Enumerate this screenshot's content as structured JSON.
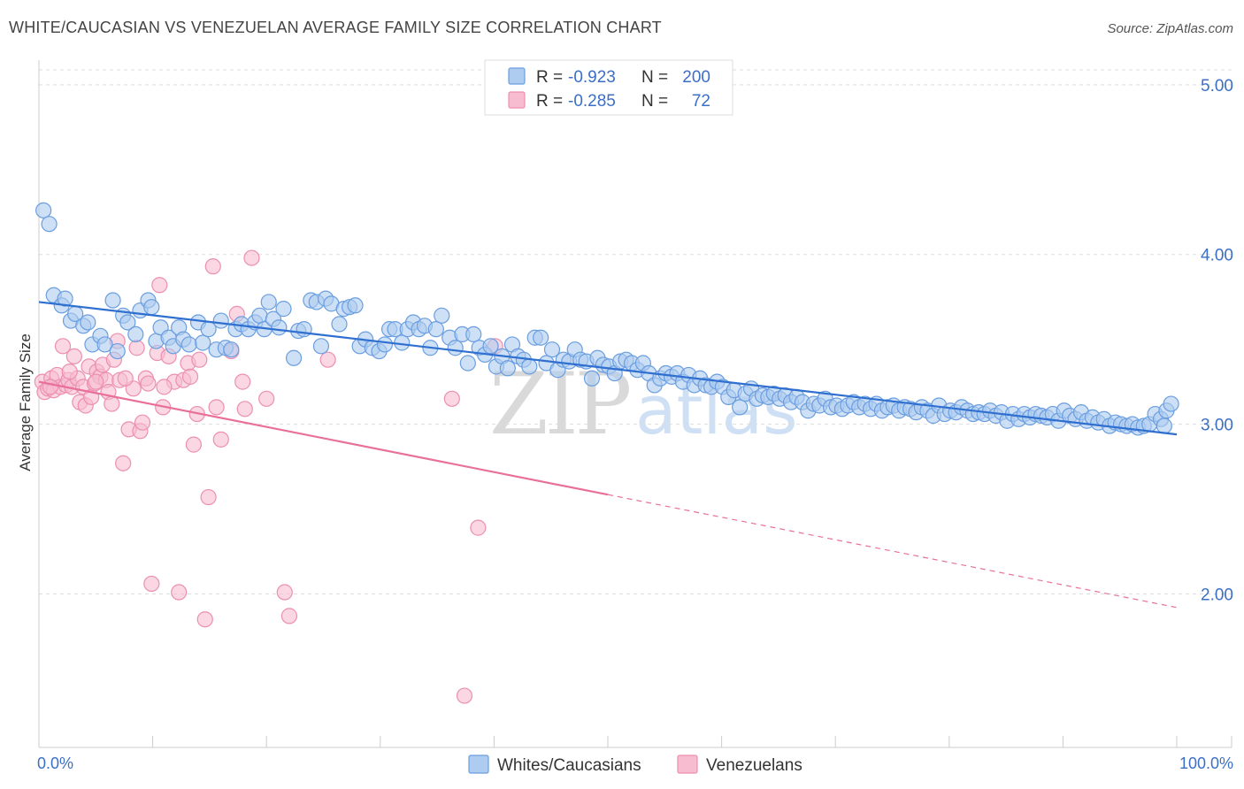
{
  "title": "WHITE/CAUCASIAN VS VENEZUELAN AVERAGE FAMILY SIZE CORRELATION CHART",
  "source": "Source: ZipAtlas.com",
  "watermark": {
    "zip": "ZIP",
    "atlas": "atlas"
  },
  "colors": {
    "blue_fill": "#aecbf0",
    "blue_stroke": "#6a9ee0",
    "blue_line": "#2f6fd0",
    "pink_fill": "#f7bcd0",
    "pink_stroke": "#ec8fb0",
    "pink_line": "#e8709a",
    "grid": "#dddddd",
    "tick_text": "#3b6fc6"
  },
  "stats": {
    "rows": [
      {
        "r_label": "R =",
        "r_value": "-0.923",
        "n_label": "N =",
        "n_value": "200"
      },
      {
        "r_label": "R =",
        "r_value": "-0.285",
        "n_label": "N =",
        "n_value": "72"
      }
    ]
  },
  "legend": {
    "items": [
      {
        "label": "Whites/Caucasians"
      },
      {
        "label": "Venezuelans"
      }
    ]
  },
  "chart_data": {
    "type": "scatter",
    "title": "WHITE/CAUCASIAN VS VENEZUELAN AVERAGE FAMILY SIZE CORRELATION CHART",
    "xlabel": "",
    "ylabel": "Average Family Size",
    "xlim": [
      0,
      100
    ],
    "ylim": [
      1.0,
      5.2
    ],
    "x_tick_labels": [
      {
        "value": 0,
        "label": "0.0%"
      },
      {
        "value": 100,
        "label": "100.0%"
      }
    ],
    "y_ticks": [
      {
        "value": 2.0,
        "label": "2.00"
      },
      {
        "value": 3.0,
        "label": "3.00"
      },
      {
        "value": 4.0,
        "label": "4.00"
      },
      {
        "value": 5.0,
        "label": "5.00"
      }
    ],
    "grid": true,
    "legend_position": "bottom-center",
    "series": [
      {
        "name": "Whites/Caucasians",
        "r": -0.923,
        "n": 200,
        "trend": {
          "x": [
            0,
            100
          ],
          "y": [
            3.72,
            2.94
          ],
          "dashed_from": null
        },
        "points": [
          [
            0.4,
            4.26
          ],
          [
            0.9,
            4.18
          ],
          [
            1.3,
            3.76
          ],
          [
            2.0,
            3.7
          ],
          [
            2.3,
            3.74
          ],
          [
            2.8,
            3.61
          ],
          [
            3.2,
            3.65
          ],
          [
            3.9,
            3.58
          ],
          [
            4.3,
            3.6
          ],
          [
            4.7,
            3.47
          ],
          [
            5.4,
            3.52
          ],
          [
            5.8,
            3.47
          ],
          [
            6.5,
            3.73
          ],
          [
            6.9,
            3.43
          ],
          [
            7.4,
            3.64
          ],
          [
            7.8,
            3.6
          ],
          [
            8.5,
            3.53
          ],
          [
            8.9,
            3.67
          ],
          [
            9.6,
            3.73
          ],
          [
            9.9,
            3.69
          ],
          [
            10.3,
            3.49
          ],
          [
            10.7,
            3.57
          ],
          [
            11.4,
            3.51
          ],
          [
            11.8,
            3.46
          ],
          [
            12.3,
            3.57
          ],
          [
            12.7,
            3.5
          ],
          [
            13.2,
            3.47
          ],
          [
            14.0,
            3.6
          ],
          [
            14.4,
            3.48
          ],
          [
            14.9,
            3.56
          ],
          [
            15.6,
            3.44
          ],
          [
            16.0,
            3.61
          ],
          [
            16.4,
            3.45
          ],
          [
            16.9,
            3.44
          ],
          [
            17.3,
            3.56
          ],
          [
            17.8,
            3.59
          ],
          [
            18.4,
            3.56
          ],
          [
            19.0,
            3.6
          ],
          [
            19.4,
            3.64
          ],
          [
            19.8,
            3.56
          ],
          [
            20.2,
            3.72
          ],
          [
            20.6,
            3.62
          ],
          [
            21.1,
            3.57
          ],
          [
            21.5,
            3.68
          ],
          [
            22.4,
            3.39
          ],
          [
            22.8,
            3.55
          ],
          [
            23.3,
            3.56
          ],
          [
            23.9,
            3.73
          ],
          [
            24.4,
            3.72
          ],
          [
            24.8,
            3.46
          ],
          [
            25.2,
            3.74
          ],
          [
            25.7,
            3.71
          ],
          [
            26.4,
            3.59
          ],
          [
            26.8,
            3.68
          ],
          [
            27.3,
            3.69
          ],
          [
            27.8,
            3.7
          ],
          [
            28.2,
            3.46
          ],
          [
            28.7,
            3.5
          ],
          [
            29.3,
            3.45
          ],
          [
            29.9,
            3.43
          ],
          [
            30.4,
            3.47
          ],
          [
            30.8,
            3.56
          ],
          [
            31.3,
            3.56
          ],
          [
            31.9,
            3.48
          ],
          [
            32.4,
            3.56
          ],
          [
            32.9,
            3.6
          ],
          [
            33.4,
            3.56
          ],
          [
            33.9,
            3.58
          ],
          [
            34.4,
            3.45
          ],
          [
            34.9,
            3.56
          ],
          [
            35.4,
            3.64
          ],
          [
            36.1,
            3.51
          ],
          [
            36.6,
            3.45
          ],
          [
            37.2,
            3.53
          ],
          [
            37.7,
            3.36
          ],
          [
            38.2,
            3.53
          ],
          [
            38.7,
            3.45
          ],
          [
            39.2,
            3.41
          ],
          [
            39.7,
            3.46
          ],
          [
            40.2,
            3.34
          ],
          [
            40.7,
            3.4
          ],
          [
            41.2,
            3.33
          ],
          [
            41.6,
            3.47
          ],
          [
            42.1,
            3.4
          ],
          [
            42.6,
            3.38
          ],
          [
            43.1,
            3.34
          ],
          [
            43.6,
            3.51
          ],
          [
            44.1,
            3.51
          ],
          [
            44.6,
            3.36
          ],
          [
            45.1,
            3.44
          ],
          [
            45.6,
            3.32
          ],
          [
            46.1,
            3.38
          ],
          [
            46.6,
            3.37
          ],
          [
            47.1,
            3.44
          ],
          [
            47.6,
            3.38
          ],
          [
            48.1,
            3.37
          ],
          [
            48.6,
            3.27
          ],
          [
            49.1,
            3.39
          ],
          [
            49.6,
            3.35
          ],
          [
            50.1,
            3.34
          ],
          [
            50.6,
            3.3
          ],
          [
            51.1,
            3.37
          ],
          [
            51.6,
            3.38
          ],
          [
            52.1,
            3.36
          ],
          [
            52.6,
            3.32
          ],
          [
            53.1,
            3.36
          ],
          [
            53.6,
            3.3
          ],
          [
            54.1,
            3.23
          ],
          [
            54.6,
            3.27
          ],
          [
            55.1,
            3.3
          ],
          [
            55.6,
            3.28
          ],
          [
            56.1,
            3.3
          ],
          [
            56.6,
            3.25
          ],
          [
            57.1,
            3.29
          ],
          [
            57.6,
            3.23
          ],
          [
            58.1,
            3.27
          ],
          [
            58.6,
            3.23
          ],
          [
            59.1,
            3.22
          ],
          [
            59.6,
            3.25
          ],
          [
            60.1,
            3.22
          ],
          [
            60.6,
            3.16
          ],
          [
            61.1,
            3.2
          ],
          [
            61.6,
            3.1
          ],
          [
            62.1,
            3.18
          ],
          [
            62.6,
            3.21
          ],
          [
            63.1,
            3.15
          ],
          [
            63.6,
            3.17
          ],
          [
            64.1,
            3.16
          ],
          [
            64.6,
            3.18
          ],
          [
            65.1,
            3.15
          ],
          [
            65.6,
            3.17
          ],
          [
            66.1,
            3.13
          ],
          [
            66.6,
            3.16
          ],
          [
            67.1,
            3.13
          ],
          [
            67.6,
            3.08
          ],
          [
            68.1,
            3.12
          ],
          [
            68.6,
            3.11
          ],
          [
            69.1,
            3.15
          ],
          [
            69.6,
            3.1
          ],
          [
            70.1,
            3.11
          ],
          [
            70.6,
            3.09
          ],
          [
            71.1,
            3.11
          ],
          [
            71.6,
            3.13
          ],
          [
            72.1,
            3.1
          ],
          [
            72.6,
            3.12
          ],
          [
            73.1,
            3.09
          ],
          [
            73.6,
            3.12
          ],
          [
            74.1,
            3.08
          ],
          [
            74.6,
            3.1
          ],
          [
            75.1,
            3.11
          ],
          [
            75.6,
            3.08
          ],
          [
            76.1,
            3.1
          ],
          [
            76.6,
            3.09
          ],
          [
            77.1,
            3.07
          ],
          [
            77.6,
            3.1
          ],
          [
            78.1,
            3.08
          ],
          [
            78.6,
            3.05
          ],
          [
            79.1,
            3.11
          ],
          [
            79.6,
            3.06
          ],
          [
            80.1,
            3.08
          ],
          [
            80.6,
            3.07
          ],
          [
            81.1,
            3.1
          ],
          [
            81.6,
            3.08
          ],
          [
            82.1,
            3.06
          ],
          [
            82.6,
            3.07
          ],
          [
            83.1,
            3.06
          ],
          [
            83.6,
            3.08
          ],
          [
            84.1,
            3.05
          ],
          [
            84.6,
            3.07
          ],
          [
            85.1,
            3.02
          ],
          [
            85.6,
            3.06
          ],
          [
            86.1,
            3.03
          ],
          [
            86.6,
            3.06
          ],
          [
            87.1,
            3.04
          ],
          [
            87.6,
            3.06
          ],
          [
            88.1,
            3.05
          ],
          [
            88.6,
            3.04
          ],
          [
            89.1,
            3.06
          ],
          [
            89.6,
            3.02
          ],
          [
            90.1,
            3.08
          ],
          [
            90.6,
            3.05
          ],
          [
            91.1,
            3.03
          ],
          [
            91.6,
            3.07
          ],
          [
            92.1,
            3.02
          ],
          [
            92.6,
            3.04
          ],
          [
            93.1,
            3.01
          ],
          [
            93.6,
            3.03
          ],
          [
            94.1,
            2.99
          ],
          [
            94.6,
            3.01
          ],
          [
            95.1,
            3.0
          ],
          [
            95.6,
            2.99
          ],
          [
            96.1,
            3.0
          ],
          [
            96.6,
            2.98
          ],
          [
            97.1,
            2.99
          ],
          [
            97.6,
            3.0
          ],
          [
            98.1,
            3.06
          ],
          [
            98.6,
            3.03
          ],
          [
            99.1,
            3.08
          ],
          [
            99.5,
            3.12
          ],
          [
            98.9,
            2.99
          ]
        ]
      },
      {
        "name": "Venezuelans",
        "r": -0.285,
        "n": 72,
        "trend": {
          "x": [
            0,
            100
          ],
          "y": [
            3.25,
            1.92
          ],
          "dashed_from": 50
        },
        "points": [
          [
            0.3,
            3.25
          ],
          [
            0.5,
            3.19
          ],
          [
            0.8,
            3.21
          ],
          [
            1.1,
            3.27
          ],
          [
            1.3,
            3.2
          ],
          [
            1.6,
            3.29
          ],
          [
            1.9,
            3.22
          ],
          [
            2.1,
            3.46
          ],
          [
            2.4,
            3.23
          ],
          [
            2.6,
            3.26
          ],
          [
            2.9,
            3.22
          ],
          [
            3.1,
            3.4
          ],
          [
            3.4,
            3.27
          ],
          [
            3.6,
            3.13
          ],
          [
            3.9,
            3.22
          ],
          [
            4.1,
            3.11
          ],
          [
            4.4,
            3.34
          ],
          [
            4.6,
            3.16
          ],
          [
            4.9,
            3.24
          ],
          [
            5.1,
            3.31
          ],
          [
            5.4,
            3.28
          ],
          [
            5.6,
            3.35
          ],
          [
            5.9,
            3.26
          ],
          [
            6.1,
            3.19
          ],
          [
            6.4,
            3.12
          ],
          [
            6.6,
            3.38
          ],
          [
            6.9,
            3.49
          ],
          [
            7.1,
            3.26
          ],
          [
            7.4,
            2.77
          ],
          [
            7.9,
            2.97
          ],
          [
            8.3,
            3.21
          ],
          [
            8.6,
            3.45
          ],
          [
            8.9,
            2.96
          ],
          [
            9.1,
            3.01
          ],
          [
            9.4,
            3.27
          ],
          [
            9.6,
            3.24
          ],
          [
            9.9,
            2.06
          ],
          [
            10.4,
            3.42
          ],
          [
            10.6,
            3.82
          ],
          [
            10.9,
            3.1
          ],
          [
            11.4,
            3.4
          ],
          [
            11.9,
            3.25
          ],
          [
            12.3,
            2.01
          ],
          [
            12.7,
            3.26
          ],
          [
            13.1,
            3.36
          ],
          [
            13.6,
            2.88
          ],
          [
            13.9,
            3.06
          ],
          [
            14.1,
            3.38
          ],
          [
            14.6,
            1.85
          ],
          [
            14.9,
            2.57
          ],
          [
            15.3,
            3.93
          ],
          [
            15.6,
            3.1
          ],
          [
            16.0,
            2.91
          ],
          [
            16.9,
            3.43
          ],
          [
            17.4,
            3.65
          ],
          [
            17.9,
            3.25
          ],
          [
            18.1,
            3.09
          ],
          [
            18.7,
            3.98
          ],
          [
            20.0,
            3.15
          ],
          [
            21.6,
            2.01
          ],
          [
            22.0,
            1.87
          ],
          [
            25.4,
            3.38
          ],
          [
            36.3,
            3.15
          ],
          [
            37.4,
            1.4
          ],
          [
            38.6,
            2.39
          ],
          [
            40.1,
            3.46
          ],
          [
            1.0,
            3.22
          ],
          [
            2.7,
            3.31
          ],
          [
            5.0,
            3.25
          ],
          [
            7.6,
            3.27
          ],
          [
            11.0,
            3.22
          ],
          [
            13.3,
            3.28
          ]
        ]
      }
    ]
  }
}
